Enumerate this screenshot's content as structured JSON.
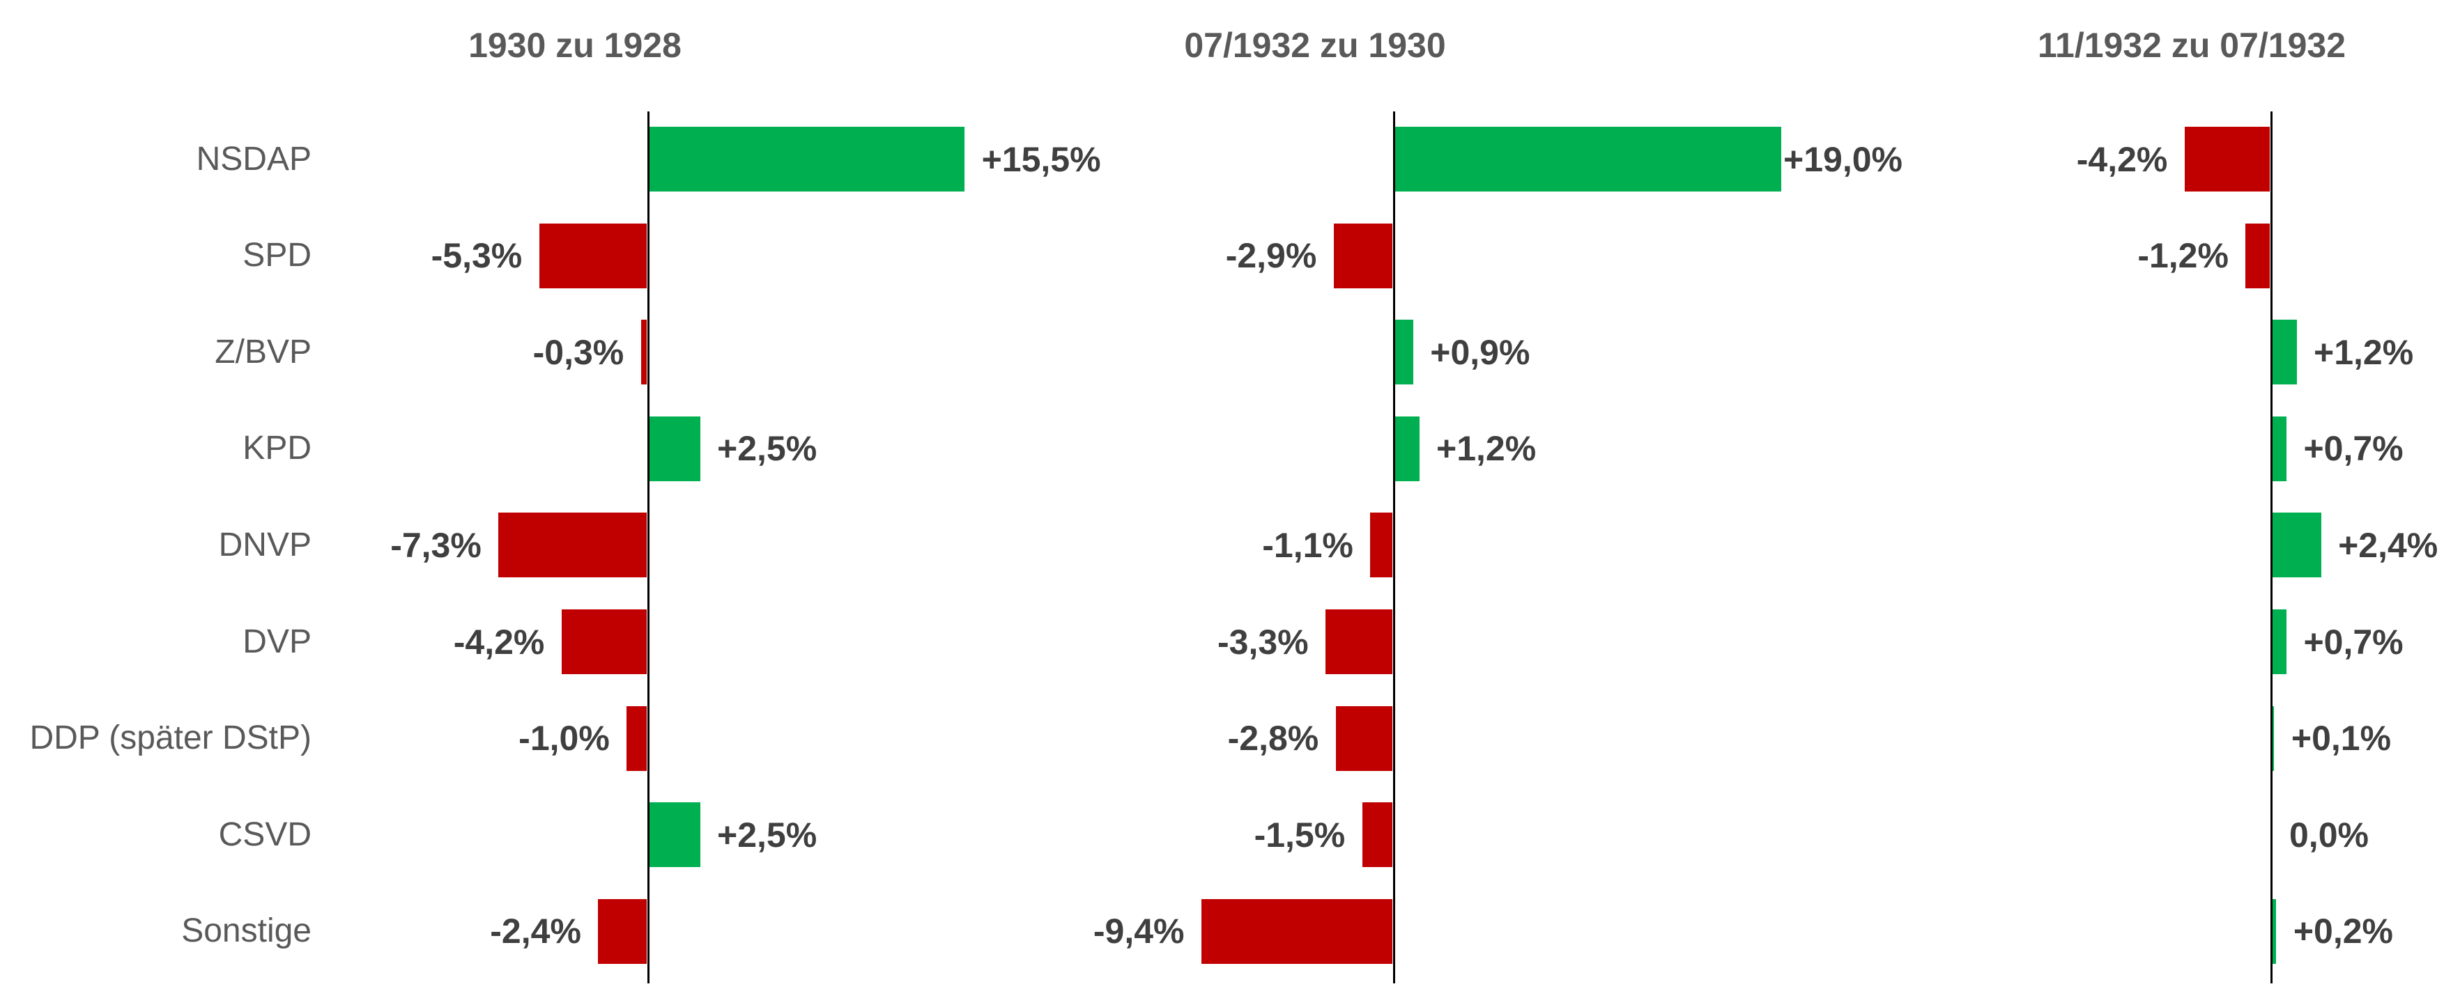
{
  "chart_data": {
    "type": "bar",
    "orientation": "horizontal",
    "title": "",
    "categories": [
      "NSDAP",
      "SPD",
      "Z/BVP",
      "KPD",
      "DNVP",
      "DVP",
      "DDP (später DStP)",
      "CSVD",
      "Sonstige"
    ],
    "panels": [
      {
        "title": "1930 zu 1928",
        "values": [
          15.5,
          -5.3,
          -0.3,
          2.5,
          -7.3,
          -4.2,
          -1.0,
          2.5,
          -2.4
        ],
        "value_labels": [
          "+15,5%",
          "-5,3%",
          "-0,3%",
          "+2,5%",
          "-7,3%",
          "-4,2%",
          "-1,0%",
          "+2,5%",
          "-2,4%"
        ]
      },
      {
        "title": "07/1932 zu 1930",
        "values": [
          19.0,
          -2.9,
          0.9,
          1.2,
          -1.1,
          -3.3,
          -2.8,
          -1.5,
          -9.4
        ],
        "value_labels": [
          "+19,0%",
          "-2,9%",
          "+0,9%",
          "+1,2%",
          "-1,1%",
          "-3,3%",
          "-2,8%",
          "-1,5%",
          "-9,4%"
        ]
      },
      {
        "title": "11/1932 zu 07/1932",
        "values": [
          -4.2,
          -1.2,
          1.2,
          0.7,
          2.4,
          0.7,
          0.1,
          0.0,
          0.2
        ],
        "value_labels": [
          "-4,2%",
          "-1,2%",
          "+1,2%",
          "+0,7%",
          "+2,4%",
          "+0,7%",
          "+0,1%",
          "0,0%",
          "+0,2%"
        ]
      }
    ],
    "colors": {
      "positive_bar": "#00B050",
      "negative_bar": "#C00000",
      "axis": "#000000",
      "title_text": "#595959",
      "category_text": "#595959",
      "value_text": "#3F3F3F",
      "background": "#FFFFFF"
    },
    "value_suffix": "%",
    "decimal_separator": ",",
    "legend": "none",
    "grid": "off",
    "xlim_per_panel_pct": [
      [
        -10,
        20
      ],
      [
        -10,
        20
      ],
      [
        -10,
        20
      ]
    ]
  }
}
